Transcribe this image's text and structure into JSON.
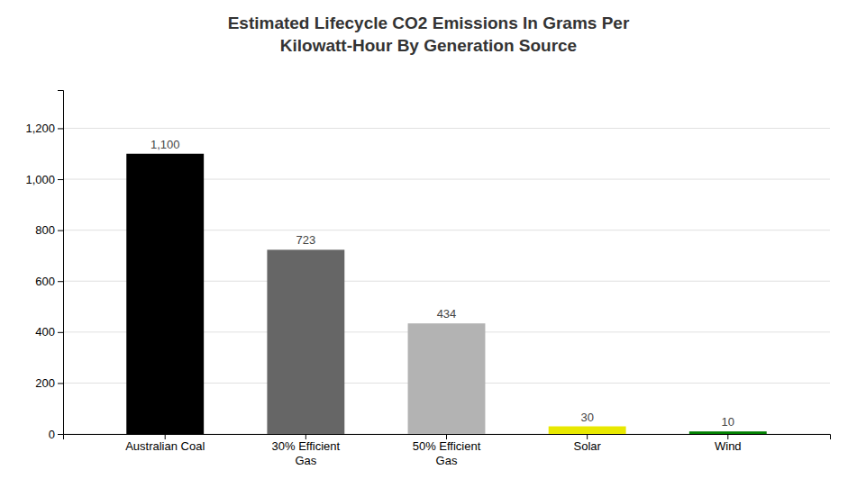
{
  "chart_data": {
    "type": "bar",
    "title": "Estimated Lifecycle CO2 Emissions In Grams Per\nKilowatt-Hour By Generation Source",
    "categories": [
      "Australian Coal",
      "30% Efficient\nGas",
      "50% Efficient\nGas",
      "Solar",
      "Wind"
    ],
    "values": [
      1100,
      723,
      434,
      30,
      10
    ],
    "value_labels": [
      "1,100",
      "723",
      "434",
      "30",
      "10"
    ],
    "data_labels": true,
    "colors": [
      "#000000",
      "#666666",
      "#b3b3b3",
      "#e8e800",
      "#008000"
    ],
    "ylim": [
      0,
      1350
    ],
    "yticks": [
      0,
      200,
      400,
      600,
      800,
      {
        "value": 1000,
        "label": "1,000"
      },
      {
        "value": 1200,
        "label": "1,200"
      }
    ],
    "grid": true
  }
}
